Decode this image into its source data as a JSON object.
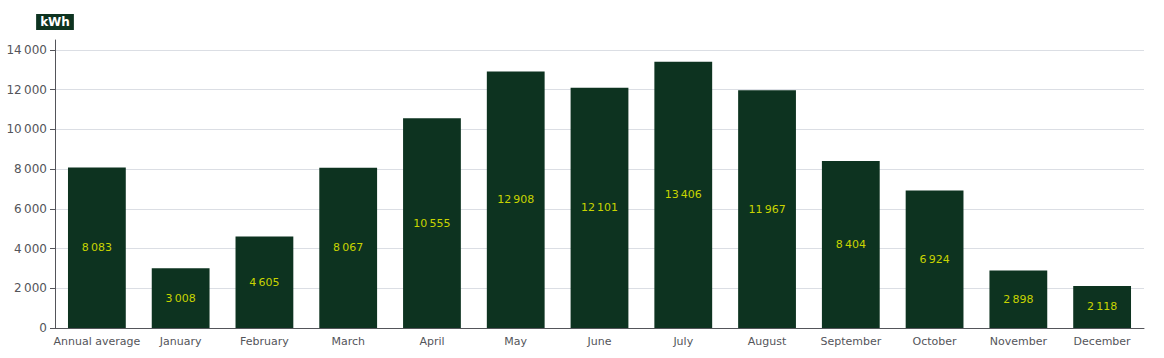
{
  "chart_data": {
    "type": "bar",
    "ylabel": "kWh",
    "categories": [
      "Annual average",
      "January",
      "February",
      "March",
      "April",
      "May",
      "June",
      "July",
      "August",
      "September",
      "October",
      "November",
      "December"
    ],
    "values": [
      8083,
      3008,
      4605,
      8067,
      10555,
      12908,
      12101,
      13406,
      11967,
      8404,
      6924,
      2898,
      2118
    ],
    "value_labels": [
      "8 083",
      "3 008",
      "4 605",
      "8 067",
      "10 555",
      "12 908",
      "12 101",
      "13 406",
      "11 967",
      "8 404",
      "6 924",
      "2 898",
      "2 118"
    ],
    "data_labels": true,
    "color": "#0d3320",
    "ylim": [
      0,
      14500
    ],
    "yticks": [
      0,
      {
        "value": 2000,
        "label": "2 000"
      },
      {
        "value": 4000,
        "label": "4 000"
      },
      {
        "value": 6000,
        "label": "6 000"
      },
      {
        "value": 8000,
        "label": "8 000"
      },
      {
        "value": 10000,
        "label": "10 000"
      },
      {
        "value": 12000,
        "label": "12 000"
      },
      {
        "value": 14000,
        "label": "14 000"
      }
    ],
    "grid": true
  }
}
